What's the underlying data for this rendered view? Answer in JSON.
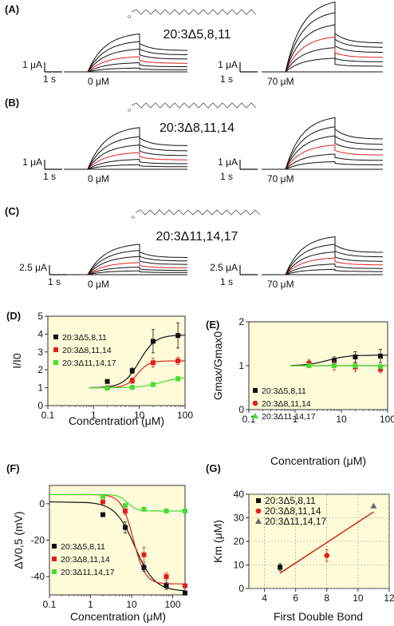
{
  "colors": {
    "black": "#111111",
    "red": "#e02020",
    "green": "#44dd33",
    "gray": "#666666",
    "line_red": "#d03020",
    "plot_bg": "#fdfbd8"
  },
  "traces": [
    {
      "label": "(A)",
      "formula": "20:3Δ5,8,11",
      "scale_left": "1 μA",
      "scale_right": "1 μA",
      "time": "1 s",
      "conc_left": "0 μM",
      "conc_right": "70 μM"
    },
    {
      "label": "(B)",
      "formula": "20:3Δ8,11,14",
      "scale_left": "1 μA",
      "scale_right": "1 μA",
      "time": "1 s",
      "conc_left": "0 μM",
      "conc_right": "70 μM"
    },
    {
      "label": "(C)",
      "formula": "20:3Δ11,14,17",
      "scale_left": "2.5 μA",
      "scale_right": "2.5 μA",
      "time": "1 s",
      "conc_left": "0 μM",
      "conc_right": "70 μM"
    }
  ],
  "chart_data": [
    {
      "panel": "(D)",
      "type": "scatter",
      "xscale": "log",
      "xlim": [
        0.1,
        100
      ],
      "ylim": [
        0,
        5
      ],
      "xticks": [
        "0.1",
        "1",
        "10",
        "100"
      ],
      "yticks": [
        "0",
        "1",
        "2",
        "3",
        "4",
        "5"
      ],
      "xlabel": "Concentration (μM)",
      "ylabel": "I/I0",
      "series": [
        {
          "name": "20:3Δ5,8,11",
          "color": "#111111",
          "x": [
            2,
            7,
            20,
            70
          ],
          "y": [
            1.35,
            1.95,
            3.6,
            3.92
          ],
          "err": [
            0,
            0.15,
            0.65,
            0.7
          ],
          "fit": {
            "bottom": 1,
            "top": 3.95,
            "ec50": 10,
            "n": 2.5
          }
        },
        {
          "name": "20:3Δ8,11,14",
          "color": "#e02020",
          "x": [
            2,
            7,
            20,
            70
          ],
          "y": [
            1.0,
            1.4,
            2.4,
            2.5
          ],
          "err": [
            0,
            0.15,
            0.25,
            0.2
          ],
          "fit": {
            "bottom": 1,
            "top": 2.5,
            "ec50": 9,
            "n": 3.5
          }
        },
        {
          "name": "20:3Δ11,14,17",
          "color": "#44dd33",
          "x": [
            2,
            7,
            20,
            70
          ],
          "y": [
            0.97,
            1.02,
            1.18,
            1.5
          ],
          "err": [
            0,
            0.05,
            0.1,
            0.12
          ],
          "fit": {
            "bottom": 1,
            "top": 1.6,
            "ec50": 30,
            "n": 2
          }
        }
      ]
    },
    {
      "panel": "(E)",
      "type": "scatter",
      "xscale": "log",
      "xlim": [
        0.1,
        100
      ],
      "ylim": [
        0,
        2
      ],
      "xticks": [
        "0.1",
        "1",
        "10",
        "100"
      ],
      "yticks": [
        "0",
        "1",
        "2"
      ],
      "xlabel": "Concentration (μM)",
      "ylabel": "Gmax/Gmax0",
      "series": [
        {
          "name": "20:3Δ5,8,11",
          "color": "#111111",
          "x": [
            2,
            7,
            20,
            70
          ],
          "y": [
            1.05,
            1.12,
            1.2,
            1.22
          ],
          "err": [
            0.08,
            0.08,
            0.12,
            0.15
          ],
          "fit": {
            "bottom": 1,
            "top": 1.24,
            "ec50": 5,
            "n": 2
          }
        },
        {
          "name": "20:3Δ8,11,14",
          "color": "#e02020",
          "x": [
            2,
            7,
            20,
            70
          ],
          "y": [
            1.05,
            1.0,
            0.97,
            0.92
          ],
          "err": [
            0.08,
            0.1,
            0.1,
            0.08
          ],
          "fit": {
            "bottom": 1,
            "top": 1,
            "ec50": 5,
            "n": 1
          }
        },
        {
          "name": "20:3Δ11,14,17",
          "color": "#44dd33",
          "x": [
            2,
            7,
            20,
            70
          ],
          "y": [
            1.0,
            1.0,
            1.0,
            0.98
          ],
          "err": [
            0,
            0,
            0,
            0
          ],
          "fit": {
            "bottom": 1,
            "top": 1,
            "ec50": 5,
            "n": 1
          }
        }
      ]
    },
    {
      "panel": "(F)",
      "type": "scatter",
      "xscale": "log",
      "xlim": [
        0.1,
        200
      ],
      "ylim": [
        -50,
        10
      ],
      "xticks": [
        "0.1",
        "1",
        "10",
        "100"
      ],
      "yticks": [
        "-40",
        "-20",
        "0"
      ],
      "xlabel": "Concentration (μM)",
      "ylabel": "ΔV0,5 (mV)",
      "series": [
        {
          "name": "20:3Δ5,8,11",
          "color": "#111111",
          "x": [
            2,
            7,
            20,
            70,
            200
          ],
          "y": [
            -6,
            -13,
            -35,
            -45,
            -49
          ],
          "err": [
            0,
            3,
            2,
            2,
            1
          ],
          "fit": {
            "bottom": 1,
            "top": -48,
            "ec50": 12,
            "n": 1.8
          }
        },
        {
          "name": "20:3Δ8,11,14",
          "color": "#e02020",
          "x": [
            2,
            7,
            20,
            70,
            200
          ],
          "y": [
            1,
            -4,
            -28,
            -40,
            -45
          ],
          "err": [
            0,
            2,
            4,
            2,
            1
          ],
          "fit": {
            "bottom": 5,
            "top": -44,
            "ec50": 11,
            "n": 3
          }
        },
        {
          "name": "20:3Δ11,14,17",
          "color": "#44dd33",
          "x": [
            2,
            7,
            20,
            70,
            200
          ],
          "y": [
            4,
            -1,
            -3,
            -4,
            -4
          ],
          "err": [
            0,
            0,
            0,
            0,
            0
          ],
          "fit": {
            "bottom": 5,
            "top": -4,
            "ec50": 8,
            "n": 4
          }
        }
      ]
    },
    {
      "panel": "(G)",
      "type": "scatter",
      "xlim": [
        3,
        12
      ],
      "ylim": [
        0,
        40
      ],
      "xticks": [
        "4",
        "6",
        "8",
        "10",
        "12"
      ],
      "yticks": [
        "0",
        "10",
        "20",
        "30",
        "40"
      ],
      "xlabel": "First Double Bond",
      "ylabel": "Km (μM)",
      "series": [
        {
          "name": "20:3Δ5,8,11",
          "color": "#111111",
          "marker": "square",
          "x": [
            5
          ],
          "y": [
            9
          ],
          "err": [
            1.5
          ]
        },
        {
          "name": "20:3Δ8,11,14",
          "color": "#e02020",
          "marker": "circle",
          "x": [
            8
          ],
          "y": [
            14
          ],
          "err": [
            2.5
          ]
        },
        {
          "name": "20:3Δ11,14,17",
          "color": "#666666",
          "marker": "triangle",
          "x": [
            11
          ],
          "y": [
            35
          ],
          "err": [
            0
          ]
        }
      ],
      "line": {
        "x": [
          5,
          11
        ],
        "y": [
          6.5,
          32.5
        ]
      }
    }
  ]
}
